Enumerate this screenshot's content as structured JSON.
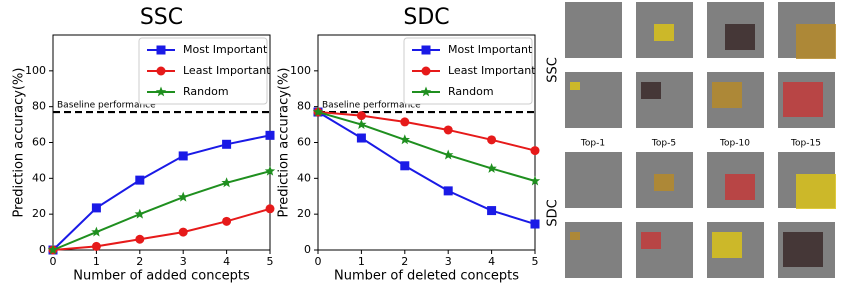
{
  "chart_data": [
    {
      "type": "line",
      "title": "SSC",
      "x_label": "Number of added concepts",
      "y_label": "Prediction accuracy(%)",
      "x": [
        0,
        1,
        2,
        3,
        4,
        5
      ],
      "xlim": [
        0,
        5
      ],
      "xticks": [
        0,
        1,
        2,
        3,
        4,
        5
      ],
      "ylim": [
        0,
        120
      ],
      "yticks": [
        0,
        20,
        40,
        60,
        80,
        100
      ],
      "legend": "upper right",
      "baseline": {
        "label": "Baseline performance",
        "value": 77
      },
      "series": [
        {
          "name": "Most Important",
          "color": "#1a1ae6",
          "marker": "square",
          "values": [
            0,
            23.5,
            39,
            52.5,
            59,
            64
          ]
        },
        {
          "name": "Least Important",
          "color": "#e61a1a",
          "marker": "circle",
          "values": [
            0,
            2,
            6,
            10,
            16,
            23
          ]
        },
        {
          "name": "Random",
          "color": "#1f8f1f",
          "marker": "star",
          "values": [
            0,
            10,
            20,
            29.5,
            37.5,
            44
          ]
        }
      ]
    },
    {
      "type": "line",
      "title": "SDC",
      "x_label": "Number of deleted concepts",
      "y_label": "Prediction accuracy(%)",
      "x": [
        0,
        1,
        2,
        3,
        4,
        5
      ],
      "xlim": [
        0,
        5
      ],
      "xticks": [
        0,
        1,
        2,
        3,
        4,
        5
      ],
      "ylim": [
        0,
        120
      ],
      "yticks": [
        0,
        20,
        40,
        60,
        80,
        100
      ],
      "legend": "upper right",
      "baseline": {
        "label": "Baseline performance",
        "value": 77
      },
      "series": [
        {
          "name": "Most Important",
          "color": "#1a1ae6",
          "marker": "square",
          "values": [
            77,
            62.5,
            47,
            33,
            22,
            14.5
          ]
        },
        {
          "name": "Least Important",
          "color": "#e61a1a",
          "marker": "circle",
          "values": [
            77,
            75,
            71.5,
            67,
            61.5,
            55.5
          ]
        },
        {
          "name": "Random",
          "color": "#1f8f1f",
          "marker": "star",
          "values": [
            77,
            70,
            61.5,
            53,
            45.5,
            38.5
          ]
        }
      ]
    }
  ],
  "image_grid": {
    "row_labels": [
      "SSC",
      "SDC"
    ],
    "column_labels": [
      "Top-1",
      "Top-5",
      "Top-10",
      "Top-15"
    ]
  }
}
